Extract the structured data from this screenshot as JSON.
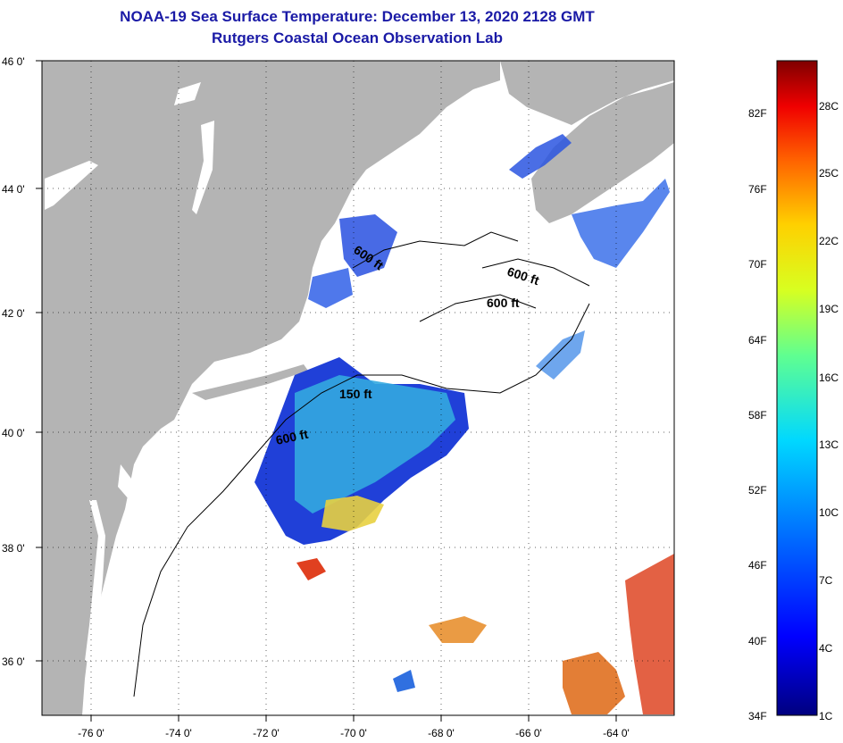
{
  "title": {
    "line1": "NOAA-19 Sea Surface Temperature:  December 13, 2020 2128 GMT",
    "line2": "Rutgers Coastal Ocean Observation Lab"
  },
  "map": {
    "lat_labels": [
      "46 0'",
      "44 0'",
      "42 0'",
      "40 0'",
      "38 0'",
      "36 0'"
    ],
    "lon_labels": [
      "-76 0'",
      "-74 0'",
      "-72 0'",
      "-70 0'",
      "-68 0'",
      "-66 0'",
      "-64 0'"
    ],
    "contour_labels": [
      "600 ft",
      "600 ft",
      "600 ft",
      "150 ft",
      "600 ft"
    ],
    "colors": {
      "land": "#b4b4b4",
      "ocean_nodata": "#ffffff",
      "cold": "#1f3fd0",
      "mid": "#33aadd",
      "warm": "#f0a020",
      "hot": "#e02020"
    }
  },
  "colorbar": {
    "fahrenheit_labels": [
      "82F",
      "76F",
      "70F",
      "64F",
      "58F",
      "52F",
      "46F",
      "40F",
      "34F"
    ],
    "celsius_labels": [
      "28C",
      "25C",
      "22C",
      "19C",
      "16C",
      "13C",
      "10C",
      "7C",
      "4C",
      "1C"
    ]
  }
}
